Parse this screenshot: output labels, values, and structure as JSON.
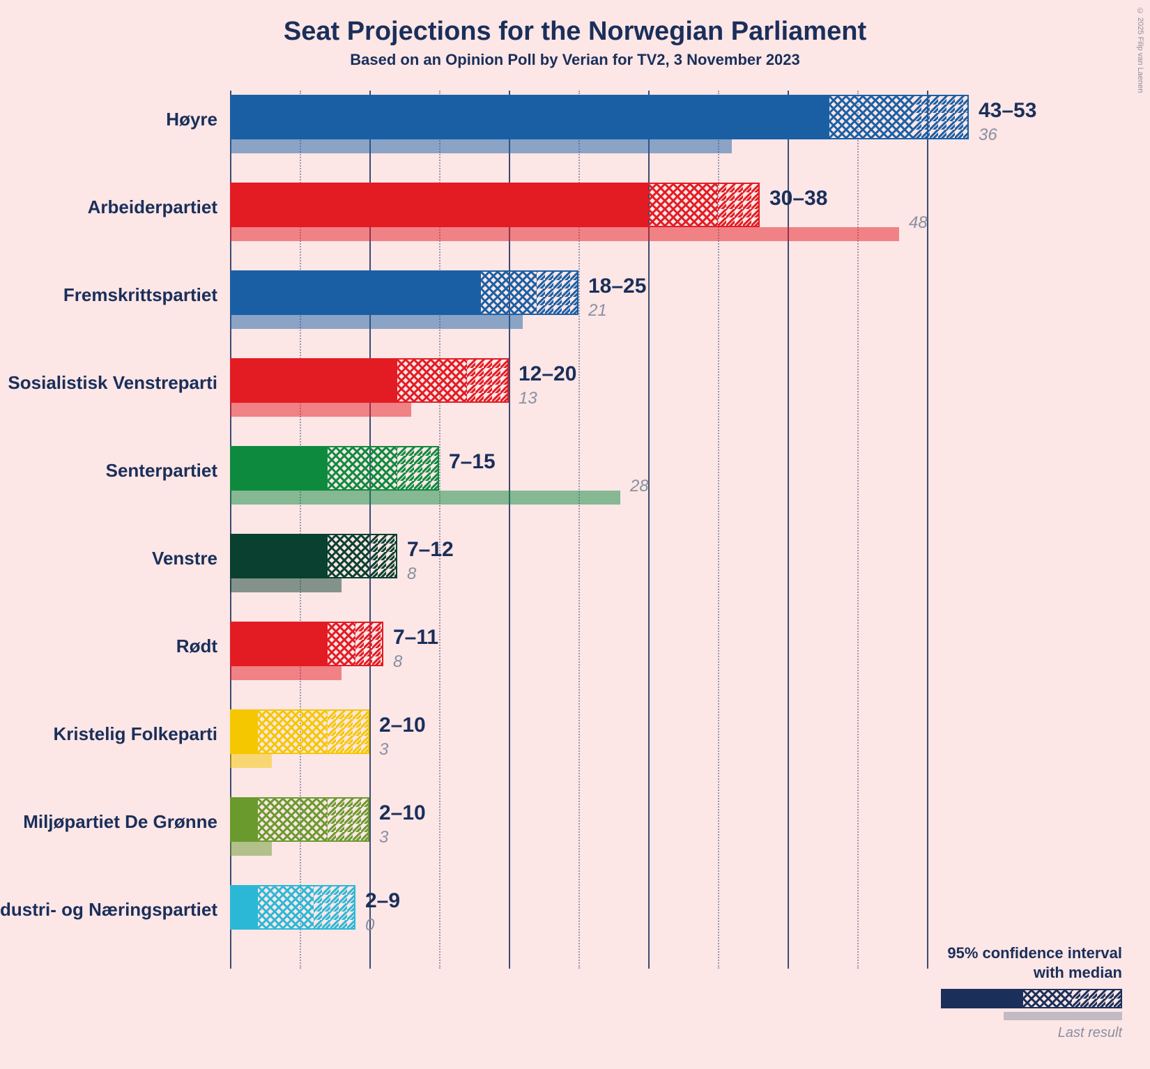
{
  "title": "Seat Projections for the Norwegian Parliament",
  "subtitle": "Based on an Opinion Poll by Verian for TV2, 3 November 2023",
  "copyright": "© 2025 Filip van Laenen",
  "title_fontsize": 38,
  "subtitle_fontsize": 22,
  "label_fontsize": 26,
  "value_fontsize": 30,
  "last_fontsize": 24,
  "background_color": "#fce6e6",
  "text_color": "#1a2f5a",
  "muted_color": "#8a8fa0",
  "x_max": 53,
  "grid_major_step": 10,
  "grid_minor_step": 5,
  "parties": [
    {
      "name": "Høyre",
      "color": "#1a5fa4",
      "low": 43,
      "q1": 46,
      "median": 49,
      "high": 53,
      "last": 36
    },
    {
      "name": "Arbeiderpartiet",
      "color": "#e31b23",
      "low": 30,
      "q1": 32,
      "median": 35,
      "high": 38,
      "last": 48
    },
    {
      "name": "Fremskrittspartiet",
      "color": "#1a5fa4",
      "low": 18,
      "q1": 20,
      "median": 22,
      "high": 25,
      "last": 21
    },
    {
      "name": "Sosialistisk Venstreparti",
      "color": "#e31b23",
      "low": 12,
      "q1": 14,
      "median": 17,
      "high": 20,
      "last": 13
    },
    {
      "name": "Senterpartiet",
      "color": "#0e8a3f",
      "low": 7,
      "q1": 10,
      "median": 12,
      "high": 15,
      "last": 28
    },
    {
      "name": "Venstre",
      "color": "#0a4030",
      "low": 7,
      "q1": 8,
      "median": 10,
      "high": 12,
      "last": 8
    },
    {
      "name": "Rødt",
      "color": "#e31b23",
      "low": 7,
      "q1": 8,
      "median": 9,
      "high": 11,
      "last": 8
    },
    {
      "name": "Kristelig Folkeparti",
      "color": "#f4c700",
      "low": 2,
      "q1": 3,
      "median": 7,
      "high": 10,
      "last": 3
    },
    {
      "name": "Miljøpartiet De Grønne",
      "color": "#6a9a2d",
      "low": 2,
      "q1": 3,
      "median": 7,
      "high": 10,
      "last": 3
    },
    {
      "name": "Industri- og Næringspartiet",
      "color": "#2bb8d6",
      "low": 2,
      "q1": 3,
      "median": 6,
      "high": 9,
      "last": 0
    }
  ],
  "legend": {
    "title_line1": "95% confidence interval",
    "title_line2": "with median",
    "last_label": "Last result",
    "bar_color": "#1a2f5a",
    "last_bar_color": "#8a8fa0"
  }
}
